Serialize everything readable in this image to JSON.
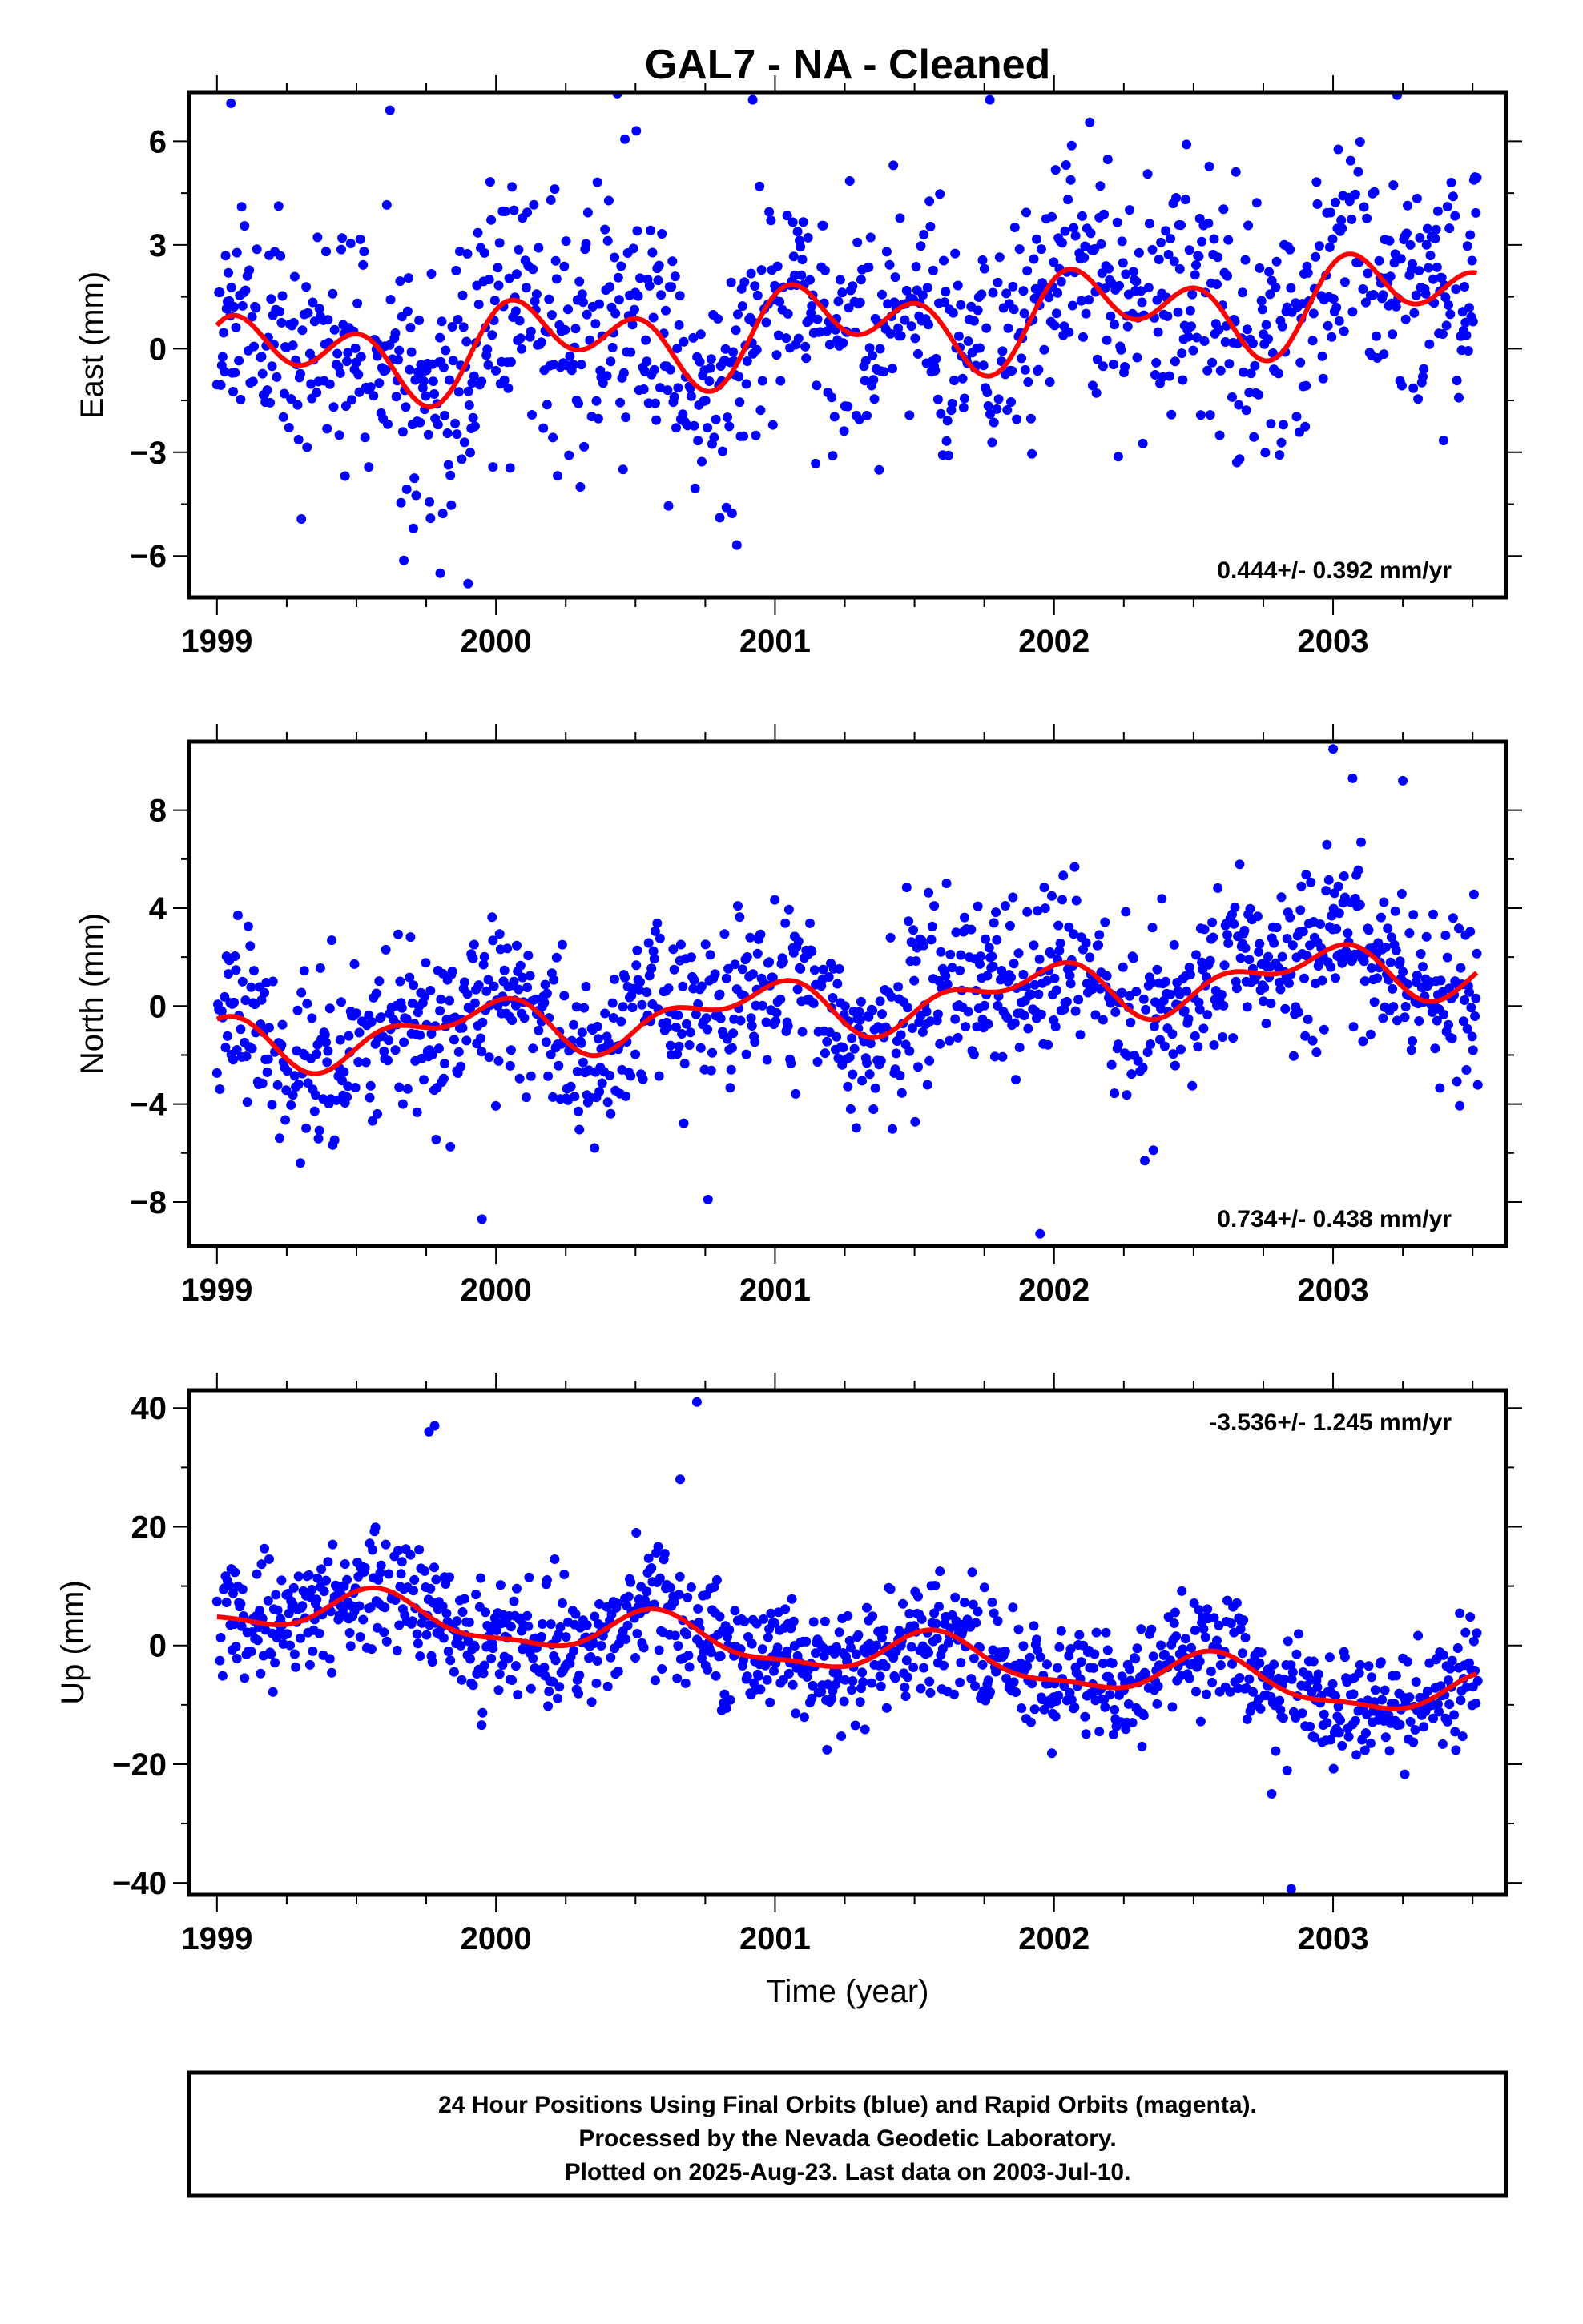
{
  "chart_data": {
    "type": "scatter",
    "title": "GAL7  - NA - Cleaned",
    "xlabel": "Time (year)",
    "xlim": [
      1998.9,
      2003.62
    ],
    "xticks": [
      1999,
      2000,
      2001,
      2002,
      2003
    ],
    "xtick_labels": [
      "1999",
      "2000",
      "2001",
      "2002",
      "2003"
    ],
    "marker_color": "#0000ff",
    "fit_color": "#ff0000",
    "panels": [
      {
        "ylabel": "East (mm)",
        "ylim": [
          -7.2,
          7.4
        ],
        "yticks": [
          6,
          3,
          0,
          -3,
          -6
        ],
        "ytick_labels": [
          "6",
          "3",
          "0",
          "−3",
          "−6"
        ],
        "rate_text": "0.444+/- 0.392 mm/yr",
        "rate_position": "bottom-right",
        "model": {
          "offset": -0.4,
          "rate": 0.444,
          "annual_amp": 0.8,
          "annual_phase": 0.3,
          "semi_amp": 0.9,
          "semi_phase": 1.2
        },
        "noise": 1.8,
        "seed": 11,
        "outliers": [
          [
            1999.05,
            7.1
          ],
          [
            1999.62,
            6.9
          ],
          [
            2000.92,
            7.2
          ],
          [
            2001.77,
            7.2
          ],
          [
            1999.9,
            -6.8
          ],
          [
            1999.8,
            -6.5
          ]
        ]
      },
      {
        "ylabel": "North (mm)",
        "ylim": [
          -9.8,
          10.8
        ],
        "yticks": [
          8,
          4,
          0,
          -4,
          -8
        ],
        "ytick_labels": [
          "8",
          "4",
          "0",
          "−4",
          "−8"
        ],
        "rate_text": "0.734+/- 0.438 mm/yr",
        "rate_position": "bottom-right",
        "model": {
          "offset": -1.6,
          "rate": 0.734,
          "annual_amp": 0.9,
          "annual_phase": 2.1,
          "semi_amp": 0.6,
          "semi_phase": 0.5
        },
        "noise": 1.7,
        "seed": 23,
        "outliers": [
          [
            2003.0,
            10.5
          ],
          [
            2003.07,
            9.3
          ],
          [
            2003.25,
            9.2
          ],
          [
            1999.95,
            -8.7
          ],
          [
            2001.95,
            -9.3
          ],
          [
            2000.76,
            -7.9
          ]
        ]
      },
      {
        "ylabel": "Up (mm)",
        "ylim": [
          -42,
          43
        ],
        "yticks": [
          40,
          20,
          0,
          -20,
          -40
        ],
        "ytick_labels": [
          "40",
          "20",
          "0",
          "−20",
          "−40"
        ],
        "rate_text": "-3.536+/- 1.245 mm/yr",
        "rate_position": "top-right",
        "model": {
          "offset": 7.0,
          "rate": -3.536,
          "annual_amp": 3.5,
          "annual_phase": 4.2,
          "semi_amp": 1.2,
          "semi_phase": 0.8
        },
        "noise": 4.8,
        "seed": 37,
        "outliers": [
          [
            2000.72,
            41
          ],
          [
            1999.76,
            36
          ],
          [
            1999.78,
            37
          ],
          [
            2000.66,
            28
          ],
          [
            2002.85,
            -41
          ],
          [
            2002.78,
            -25
          ]
        ]
      }
    ],
    "time_start": 1999.0,
    "time_end": 2003.52,
    "sample_step": 0.0034
  },
  "footer": {
    "line1": "24 Hour Positions Using Final Orbits (blue) and Rapid Orbits (magenta).",
    "line2": "Processed by the Nevada Geodetic Laboratory.",
    "line3": "Plotted on 2025-Aug-23. Last data on 2003-Jul-10."
  }
}
